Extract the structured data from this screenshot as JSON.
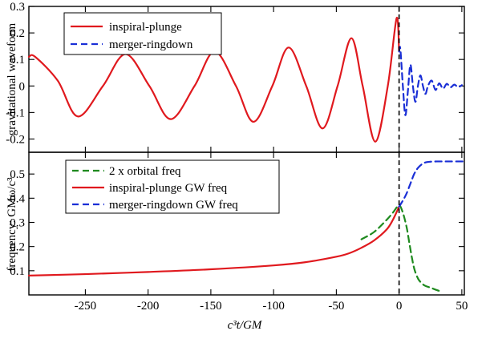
{
  "chart_data": [
    {
      "type": "line",
      "panel": "top",
      "ylabel": "gravitational waveform",
      "xlim": [
        -295,
        52
      ],
      "ylim": [
        -0.25,
        0.3
      ],
      "yticks": [
        -0.2,
        -0.1,
        0,
        0.1,
        0.2,
        0.3
      ],
      "ytick_labels": [
        "-0.2",
        "-0.1",
        "0",
        "0.1",
        "0.2",
        "0.3"
      ],
      "legend_position": "top-left",
      "vline_x": 0,
      "series": [
        {
          "name": "inspiral-plunge",
          "color": "#e0191e",
          "style": "solid",
          "x": [
            -295,
            -290,
            -272,
            -256,
            -236,
            -218,
            -199,
            -182,
            -163,
            -147,
            -130,
            -116,
            -101,
            -88,
            -74,
            -61,
            -49,
            -38,
            -29,
            -19,
            -9,
            -2,
            0
          ],
          "y": [
            0.11,
            0.11,
            0.02,
            -0.115,
            0.0,
            0.12,
            0.0,
            -0.125,
            0.0,
            0.13,
            0.0,
            -0.135,
            0.0,
            0.145,
            0.0,
            -0.16,
            0.0,
            0.18,
            0.0,
            -0.21,
            0.0,
            0.255,
            0.13
          ]
        },
        {
          "name": "merger-ringdown",
          "color": "#1a2fd6",
          "style": "dashed",
          "x": [
            0,
            1,
            3,
            5,
            7,
            9,
            11,
            13,
            15,
            17,
            19,
            21,
            23,
            26,
            29,
            32,
            35,
            38,
            41,
            44,
            47,
            50
          ],
          "y": [
            0.13,
            0.14,
            0.0,
            -0.11,
            -0.02,
            0.08,
            0.0,
            -0.06,
            0.0,
            0.04,
            0.0,
            -0.03,
            0.0,
            0.02,
            -0.015,
            0.01,
            -0.01,
            0.008,
            -0.005,
            0.005,
            -0.004,
            0.003
          ]
        }
      ]
    },
    {
      "type": "line",
      "panel": "bottom",
      "ylabel": "frequency: GMω/c³",
      "xlabel": "c³t/GM",
      "xlim": [
        -295,
        52
      ],
      "ylim": [
        0.0,
        0.59
      ],
      "xticks": [
        -250,
        -200,
        -150,
        -100,
        -50,
        0,
        50
      ],
      "xtick_labels": [
        "-250",
        "-200",
        "-150",
        "-100",
        "-50",
        "0",
        "50"
      ],
      "yticks": [
        0.1,
        0.2,
        0.3,
        0.4,
        0.5
      ],
      "ytick_labels": [
        "0.1",
        "0.2",
        "0.3",
        "0.4",
        "0.5"
      ],
      "legend_position": "top-left",
      "vline_x": 0,
      "series": [
        {
          "name": "2 x orbital freq",
          "color": "#1f8a1f",
          "style": "dashed",
          "x": [
            -30,
            -20,
            -10,
            -5,
            0,
            3,
            6,
            8,
            10,
            12,
            14,
            16,
            20,
            25,
            30,
            33
          ],
          "y": [
            0.23,
            0.26,
            0.31,
            0.34,
            0.37,
            0.34,
            0.28,
            0.22,
            0.16,
            0.11,
            0.08,
            0.06,
            0.04,
            0.03,
            0.02,
            0.015
          ]
        },
        {
          "name": "inspiral-plunge GW freq",
          "color": "#e0191e",
          "style": "solid",
          "x": [
            -295,
            -250,
            -200,
            -150,
            -100,
            -75,
            -50,
            -40,
            -30,
            -20,
            -10,
            -5,
            0
          ],
          "y": [
            0.08,
            0.086,
            0.095,
            0.106,
            0.122,
            0.135,
            0.158,
            0.172,
            0.195,
            0.225,
            0.27,
            0.31,
            0.365
          ]
        },
        {
          "name": "merger-ringdown GW freq",
          "color": "#1a2fd6",
          "style": "dashed",
          "x": [
            0,
            3,
            6,
            9,
            12,
            15,
            18,
            21,
            25,
            30,
            40,
            52
          ],
          "y": [
            0.365,
            0.39,
            0.42,
            0.46,
            0.5,
            0.525,
            0.54,
            0.548,
            0.551,
            0.552,
            0.552,
            0.552
          ]
        }
      ]
    }
  ]
}
